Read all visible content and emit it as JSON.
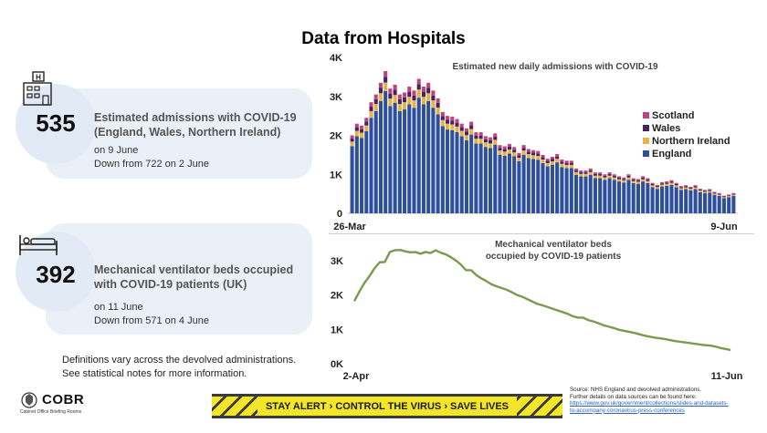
{
  "title": "Data from Hospitals",
  "stat_admissions": {
    "number": "535",
    "headline_1": "Estimated admissions with COVID-19",
    "headline_2": "(England, Wales, Northern Ireland)",
    "date_line": "on 9 June",
    "change_line": "Down from 722 on 2 June",
    "icon": "hospital-icon"
  },
  "stat_ventilators": {
    "number": "392",
    "headline_1": "Mechanical ventilator beds occupied",
    "headline_2": "with COVID-19 patients (UK)",
    "date_line": "on 11 June",
    "change_line": "Down from 571 on 4 June",
    "icon": "hospital-bed-icon"
  },
  "definitions": {
    "line_1": "Definitions vary across the devolved administrations.",
    "line_2": "See statistical notes for more information."
  },
  "banner": {
    "text": "STAY ALERT › CONTROL THE VIRUS › SAVE LIVES"
  },
  "logo": {
    "name": "COBR",
    "sub": "Cabinet Office Briefing Rooms"
  },
  "source": {
    "line_1": "Source: NHS England and devolved administrations.",
    "line_2": "Further details on data sources can be found here:",
    "link_1": "https://www.gov.uk/government/collections/slides-and-datasets-",
    "link_2": "to-accompany-coronavirus-press-conferences"
  },
  "chart_data": [
    {
      "type": "bar",
      "stacked": true,
      "title": "Estimated new daily admissions with COVID-19",
      "x_start_label": "26-Mar",
      "x_end_label": "9-Jun",
      "yticks": [
        "0",
        "1K",
        "2K",
        "3K",
        "4K"
      ],
      "ylim": [
        0,
        4000
      ],
      "legend_position": "right",
      "colors": {
        "England": "#2e4f9c",
        "Northern Ireland": "#e6b34a",
        "Wales": "#4a2060",
        "Scotland": "#c0437f"
      },
      "totals": [
        2000,
        2300,
        2250,
        2450,
        2850,
        3050,
        3350,
        3650,
        3200,
        3300,
        3050,
        3100,
        3250,
        3150,
        3450,
        3250,
        3350,
        3150,
        2950,
        2600,
        2500,
        2480,
        2420,
        2300,
        2180,
        2350,
        2080,
        2080,
        1980,
        1950,
        2050,
        1750,
        1720,
        1780,
        1700,
        1550,
        1750,
        1650,
        1620,
        1600,
        1500,
        1400,
        1450,
        1520,
        1380,
        1350,
        1350,
        1150,
        1100,
        1100,
        1150,
        1050,
        1050,
        1000,
        1050,
        1000,
        950,
        920,
        1000,
        900,
        880,
        950,
        900,
        780,
        730,
        800,
        820,
        850,
        780,
        700,
        720,
        680,
        720,
        630,
        600,
        620,
        550,
        520,
        450,
        480,
        520
      ],
      "england_share": 0.86,
      "ni_share": 0.06,
      "wales_share": 0.04,
      "scotland_share": 0.04
    },
    {
      "type": "line",
      "title_line_1": "Mechanical ventilator beds",
      "title_line_2": "occupied by COVID-19 patients",
      "x_start_label": "2-Apr",
      "x_end_label": "11-Jun",
      "yticks": [
        "0K",
        "1K",
        "2K",
        "3K"
      ],
      "ylim": [
        0,
        3500
      ],
      "color": "#7a9a4e",
      "values": [
        1820,
        2100,
        2350,
        2550,
        2780,
        2950,
        2960,
        3250,
        3300,
        3310,
        3270,
        3240,
        3250,
        3200,
        3250,
        3220,
        3300,
        3230,
        3180,
        3100,
        3000,
        2880,
        2720,
        2720,
        2580,
        2480,
        2400,
        2310,
        2250,
        2200,
        2150,
        2080,
        2000,
        1950,
        1880,
        1810,
        1740,
        1700,
        1650,
        1600,
        1550,
        1500,
        1450,
        1380,
        1340,
        1340,
        1270,
        1230,
        1180,
        1120,
        1080,
        1040,
        990,
        960,
        930,
        900,
        860,
        820,
        790,
        760,
        740,
        720,
        690,
        660,
        640,
        620,
        600,
        580,
        560,
        540,
        530,
        500,
        460,
        430,
        400
      ]
    }
  ]
}
